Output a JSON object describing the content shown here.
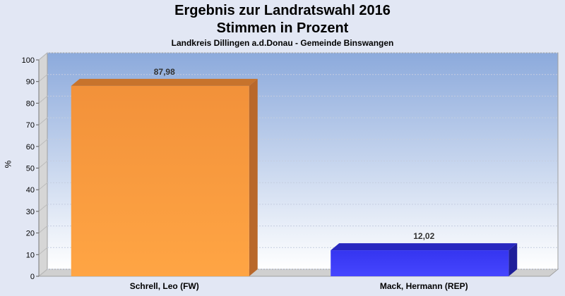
{
  "header": {
    "title_line1": "Ergebnis zur Landratswahl 2016",
    "title_line2": "Stimmen in Prozent",
    "subtitle": "Landkreis Dillingen a.d.Donau - Gemeinde Binswangen"
  },
  "chart_data": {
    "type": "bar",
    "title": "Ergebnis zur Landratswahl 2016 Stimmen in Prozent",
    "subtitle": "Landkreis Dillingen a.d.Donau - Gemeinde Binswangen",
    "categories": [
      "Schrell, Leo (FW)",
      "Mack, Hermann (REP)"
    ],
    "values": [
      87.98,
      12.02
    ],
    "value_labels": [
      "87,98",
      "12,02"
    ],
    "ylabel": "%",
    "ylim": [
      0,
      100
    ],
    "yticks": [
      0,
      10,
      20,
      30,
      40,
      50,
      60,
      70,
      80,
      90,
      100
    ],
    "grid": true,
    "colors": [
      "#ff9d3a",
      "#3a3aff"
    ]
  }
}
